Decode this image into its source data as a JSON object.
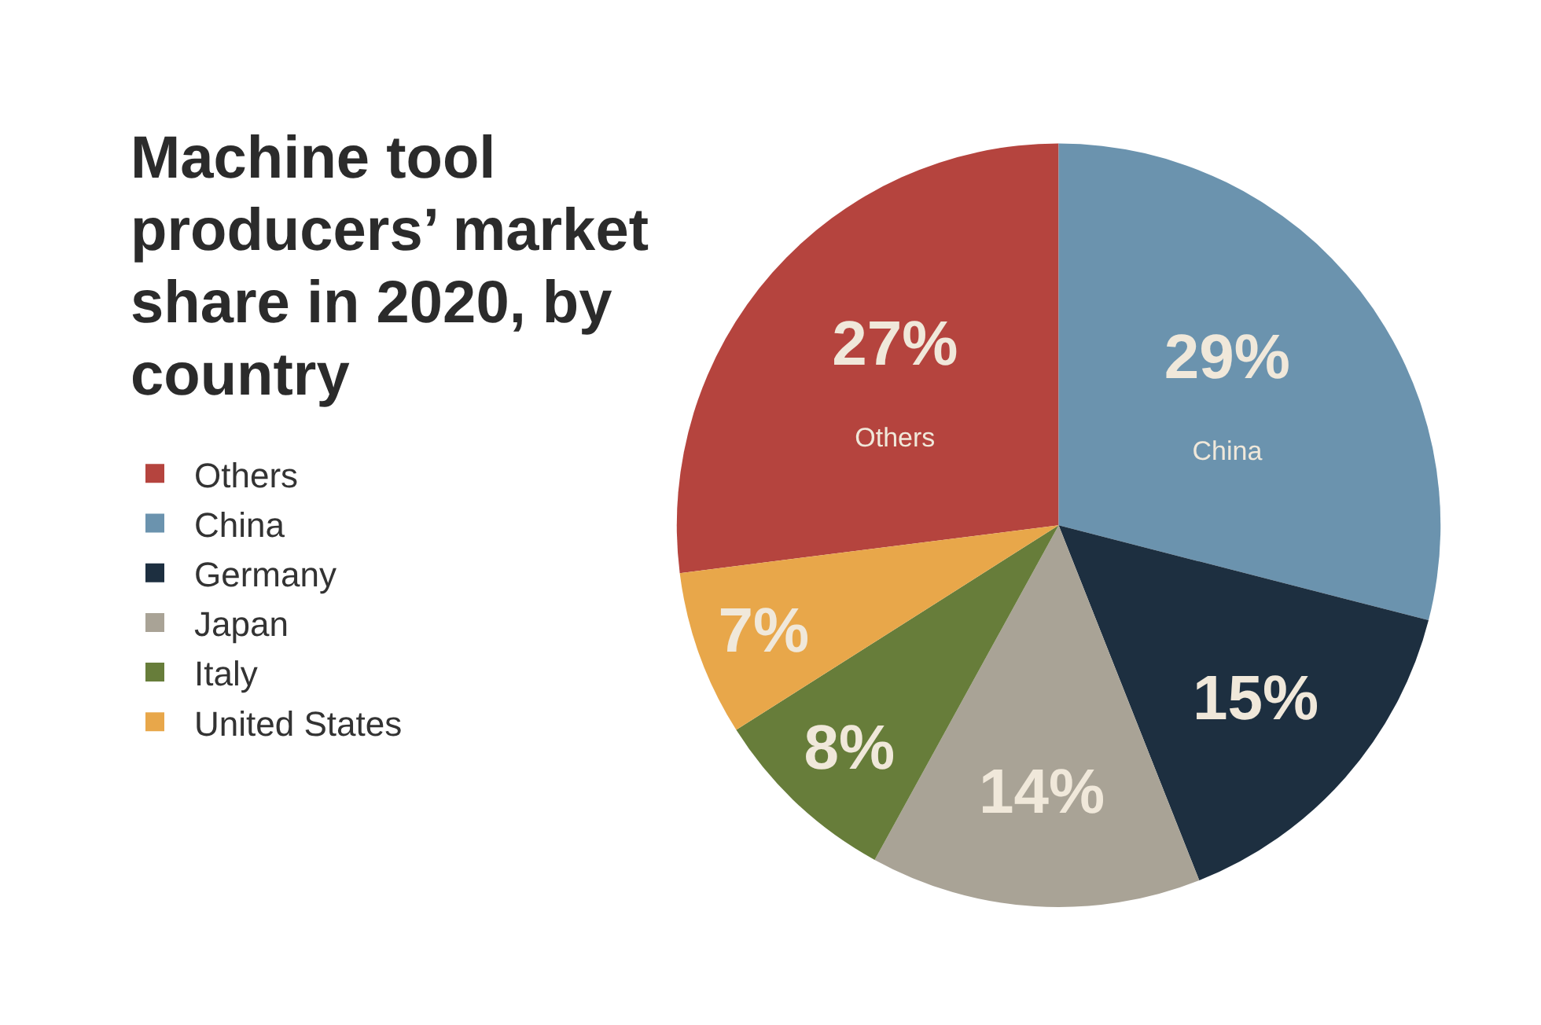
{
  "chart_data": {
    "type": "pie",
    "title": "Machine tool producers’ market share in 2020, by country",
    "categories": [
      "Others",
      "China",
      "Germany",
      "Japan",
      "Italy",
      "United States"
    ],
    "values": [
      27,
      29,
      15,
      14,
      8,
      7
    ],
    "colors": [
      "#b5443e",
      "#6b93ae",
      "#1d2f40",
      "#a9a396",
      "#677d3a",
      "#e8a74a"
    ],
    "value_labels": [
      "27%\nOthers",
      "29%\nChina",
      "15%",
      "14%",
      "8%",
      "7%"
    ],
    "legend": "left"
  }
}
